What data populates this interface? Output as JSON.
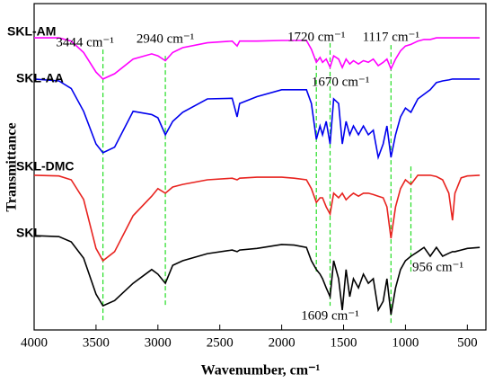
{
  "chart_data": {
    "type": "line",
    "x_label": "Wavenumber, cm⁻¹",
    "y_label": "Transmittance",
    "xlim": [
      4000,
      350
    ],
    "ylim": [
      0,
      100
    ],
    "xticks": [
      4000,
      3500,
      3000,
      2500,
      2000,
      1500,
      1000,
      500
    ],
    "x": [
      4000,
      3800,
      3700,
      3600,
      3500,
      3444,
      3350,
      3200,
      3050,
      3000,
      2940,
      2880,
      2800,
      2600,
      2400,
      2360,
      2340,
      2200,
      2000,
      1900,
      1800,
      1760,
      1720,
      1690,
      1670,
      1640,
      1609,
      1580,
      1540,
      1510,
      1480,
      1450,
      1420,
      1380,
      1340,
      1300,
      1260,
      1220,
      1180,
      1150,
      1117,
      1080,
      1040,
      1000,
      956,
      900,
      850,
      800,
      750,
      700,
      650,
      620,
      600,
      550,
      500,
      400
    ],
    "series": [
      {
        "name": "SKL-AM",
        "color": "#ff00ff",
        "values": [
          89.5,
          89.5,
          88.5,
          85,
          79,
          76.9,
          78.5,
          83,
          84.6,
          84,
          82.5,
          85,
          86.5,
          88,
          88.5,
          87,
          88.5,
          88.5,
          88.7,
          88.7,
          88.7,
          86,
          82,
          83.5,
          82,
          83,
          80.5,
          84,
          83,
          80.4,
          83,
          81.5,
          82.5,
          81.5,
          82.5,
          82,
          83,
          81,
          82,
          83,
          80,
          83,
          85.5,
          87,
          87.5,
          88.5,
          89,
          89,
          89.5,
          89.5,
          89.5,
          89.5,
          89.5,
          89.5,
          89.5,
          89.5
        ]
      },
      {
        "name": "SKL-AA",
        "color": "#0000ee",
        "values": [
          76.9,
          76.3,
          74,
          67,
          57,
          54.3,
          56,
          67,
          66,
          65,
          59.8,
          63.9,
          66.7,
          70.8,
          71,
          65.3,
          69.4,
          71.5,
          73.6,
          73.6,
          73.6,
          69.4,
          58.4,
          62.5,
          59.8,
          63.9,
          57,
          70.8,
          69.4,
          57,
          63.9,
          59.8,
          62.5,
          59.8,
          62.5,
          59.8,
          61.2,
          52.9,
          57,
          62.5,
          52.9,
          59.8,
          65.3,
          68,
          66.7,
          70.8,
          72.2,
          73.6,
          75.8,
          76.3,
          76.6,
          76.9,
          76.9,
          76.9,
          76.9,
          76.9
        ]
      },
      {
        "name": "SKL-DMC",
        "color": "#e8231f",
        "values": [
          47.4,
          47.2,
          46,
          40,
          25,
          21.2,
          24,
          35,
          41,
          43.3,
          41.9,
          43.8,
          44.6,
          46,
          46.5,
          46,
          46.5,
          46.8,
          46.8,
          46.5,
          46,
          43.3,
          39.1,
          40.5,
          40.5,
          37.7,
          35.5,
          41.9,
          40.5,
          41.9,
          39.9,
          41,
          41.9,
          41,
          41.9,
          41.9,
          41.5,
          41,
          40.5,
          37.7,
          28.1,
          37.7,
          43.3,
          46,
          44.6,
          47.4,
          47.4,
          47.4,
          47,
          46,
          41.9,
          33.6,
          41.9,
          46.6,
          47.2,
          47.4
        ]
      },
      {
        "name": "SKL",
        "color": "#000000",
        "values": [
          28.9,
          28.6,
          27,
          22,
          11,
          7.4,
          9,
          14.3,
          18.5,
          17.1,
          14.3,
          19.8,
          21.2,
          23.4,
          24.5,
          24,
          24.5,
          25,
          26.2,
          26,
          25.3,
          21.2,
          18.5,
          17.1,
          15.7,
          12.9,
          10.2,
          21.2,
          15.7,
          6.1,
          18.5,
          10.2,
          15.7,
          12.9,
          17.1,
          14.3,
          15.7,
          6.1,
          8.8,
          15.7,
          4.7,
          12.9,
          18.5,
          21.2,
          22.6,
          24,
          25.3,
          22.6,
          25.3,
          22.6,
          23.5,
          24,
          24,
          24.5,
          25,
          25.3
        ]
      }
    ],
    "annotations": [
      {
        "text": "3444 cm⁻¹",
        "x": 3444,
        "span": [
          85.9,
          2.8
        ]
      },
      {
        "text": "2940 cm⁻¹",
        "x": 2940,
        "span": [
          84,
          7.4
        ]
      },
      {
        "text": "1720 cm⁻¹",
        "x": 1720,
        "span": [
          83.2,
          17.1
        ]
      },
      {
        "text": "1670 cm⁻¹",
        "x": 1670
      },
      {
        "text": "1117 cm⁻¹",
        "x": 1117,
        "span": [
          87.3,
          1.9
        ]
      },
      {
        "text": "1609 cm⁻¹",
        "x": 1609,
        "span": [
          87.9,
          7.4
        ]
      },
      {
        "text": "956 cm⁻¹",
        "x": 956,
        "span": [
          50.1,
          17.1
        ]
      }
    ],
    "annotation_color": "#22dd22"
  }
}
